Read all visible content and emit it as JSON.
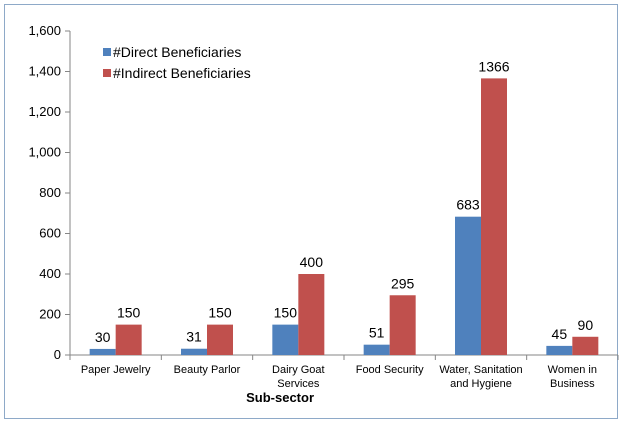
{
  "chart_data": {
    "type": "bar",
    "title": "",
    "xlabel": "Sub-sector",
    "ylabel": "",
    "ylim": [
      0,
      1600
    ],
    "y_ticks": [
      "0",
      "200",
      "400",
      "600",
      "800",
      "1,000",
      "1,200",
      "1,400",
      "1,600"
    ],
    "y_tick_values": [
      0,
      200,
      400,
      600,
      800,
      1000,
      1200,
      1400,
      1600
    ],
    "grid": false,
    "legend_position": "top-left",
    "categories": [
      [
        "Paper Jewelry"
      ],
      [
        "Beauty Parlor"
      ],
      [
        "Dairy Goat",
        "Services"
      ],
      [
        "Food Security"
      ],
      [
        "Water, Sanitation",
        "and Hygiene"
      ],
      [
        "Women in",
        "Business"
      ]
    ],
    "series": [
      {
        "name": "#Direct Beneficiaries",
        "color": "#4f81bd",
        "values": [
          30,
          31,
          150,
          51,
          683,
          45
        ],
        "labels": [
          "30",
          "31",
          "150",
          "51",
          "683",
          "45"
        ]
      },
      {
        "name": "#Indirect Beneficiaries",
        "color": "#c0504d",
        "values": [
          150,
          150,
          400,
          295,
          1366,
          90
        ],
        "labels": [
          "150",
          "150",
          "400",
          "295",
          "1366",
          "90"
        ]
      }
    ]
  }
}
